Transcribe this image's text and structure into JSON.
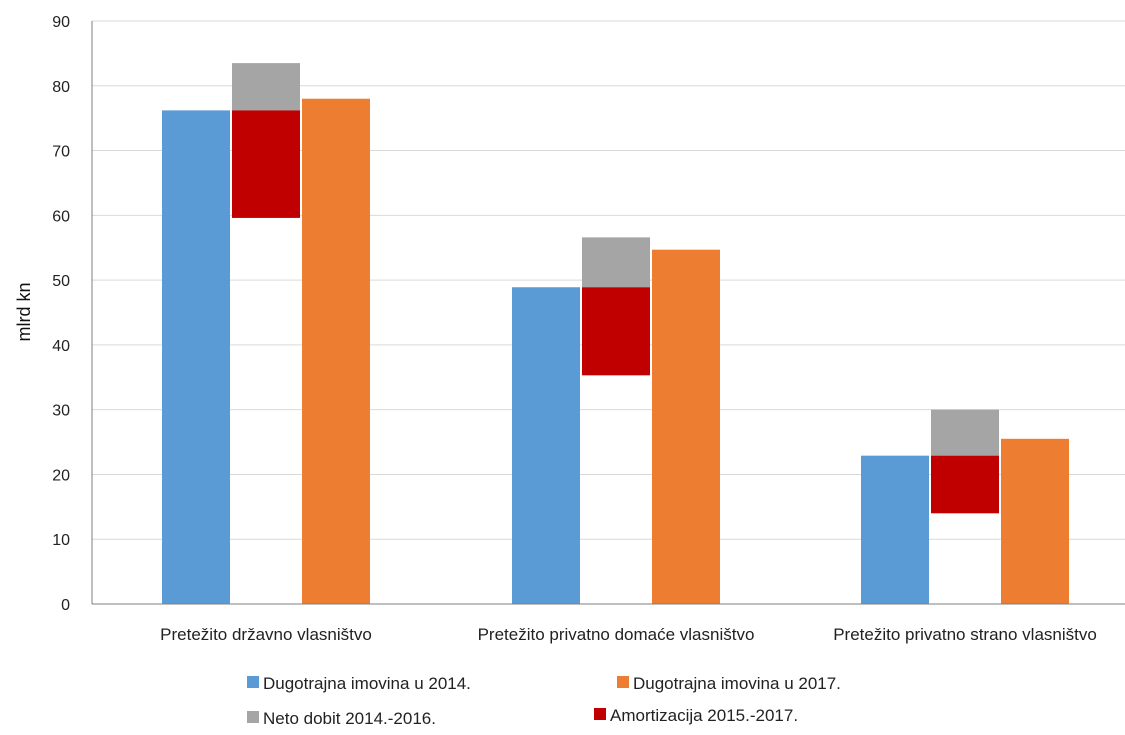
{
  "chart_data": {
    "type": "bar",
    "ylabel": "mlrd kn",
    "ylim": [
      0,
      90
    ],
    "yticks": [
      0,
      10,
      20,
      30,
      40,
      50,
      60,
      70,
      80,
      90
    ],
    "grid": true,
    "legend_position": "bottom",
    "categories": [
      "Pretežito državno vlasništvo",
      "Pretežito privatno domaće vlasništvo",
      "Pretežito privatno strano vlasništvo"
    ],
    "series": [
      {
        "name": "Dugotrajna imovina u 2014.",
        "color": "#5B9BD5",
        "values": [
          76.2,
          48.9,
          22.9
        ]
      },
      {
        "name": "Neto dobit 2014.-2016.",
        "color": "#A5A5A5",
        "values": [
          7.3,
          7.7,
          7.1
        ]
      },
      {
        "name": "Amortizacija 2015.-2017.",
        "color": "#C00000",
        "values": [
          16.6,
          13.6,
          8.9
        ]
      },
      {
        "name": "Dugotrajna imovina u 2017.",
        "color": "#ED7D31",
        "values": [
          78.0,
          54.7,
          25.5
        ]
      }
    ],
    "legend_order": [
      "Dugotrajna imovina u 2014.",
      "Dugotrajna imovina u 2017.",
      "Neto dobit 2014.-2016.",
      "Amortizacija 2015.-2017."
    ]
  }
}
